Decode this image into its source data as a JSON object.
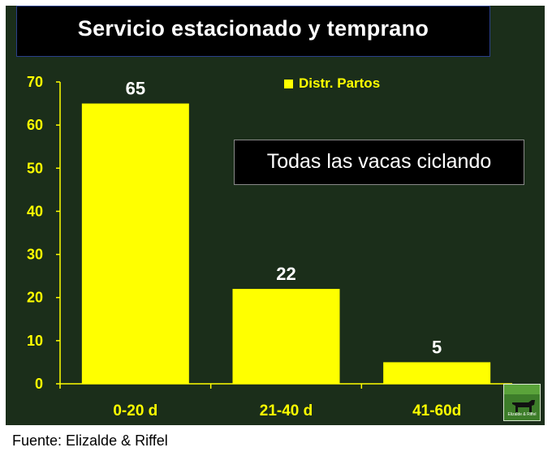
{
  "colors": {
    "background": "#1b2e1a",
    "bar": "#ffff00",
    "axis_text": "#ffff00",
    "value_text": "#ffffff"
  },
  "source": "Fuente: Elizalde & Riffel",
  "logo_text": "Elizalde & Riffel",
  "annotation": "Todas las vacas ciclando",
  "chart_data": {
    "type": "bar",
    "title": "Servicio estacionado y temprano",
    "categories": [
      "0-20 d",
      "21-40 d",
      "41-60d"
    ],
    "series": [
      {
        "name": "Distr. Partos",
        "values": [
          65,
          22,
          5
        ]
      }
    ],
    "value_labels": [
      "65",
      "22",
      "5"
    ],
    "ylim": [
      0,
      70
    ],
    "yticks": [
      "0",
      "10",
      "20",
      "30",
      "40",
      "50",
      "60",
      "70"
    ],
    "xlabel": "",
    "ylabel": "",
    "grid": false,
    "legend_position": "top-right"
  }
}
